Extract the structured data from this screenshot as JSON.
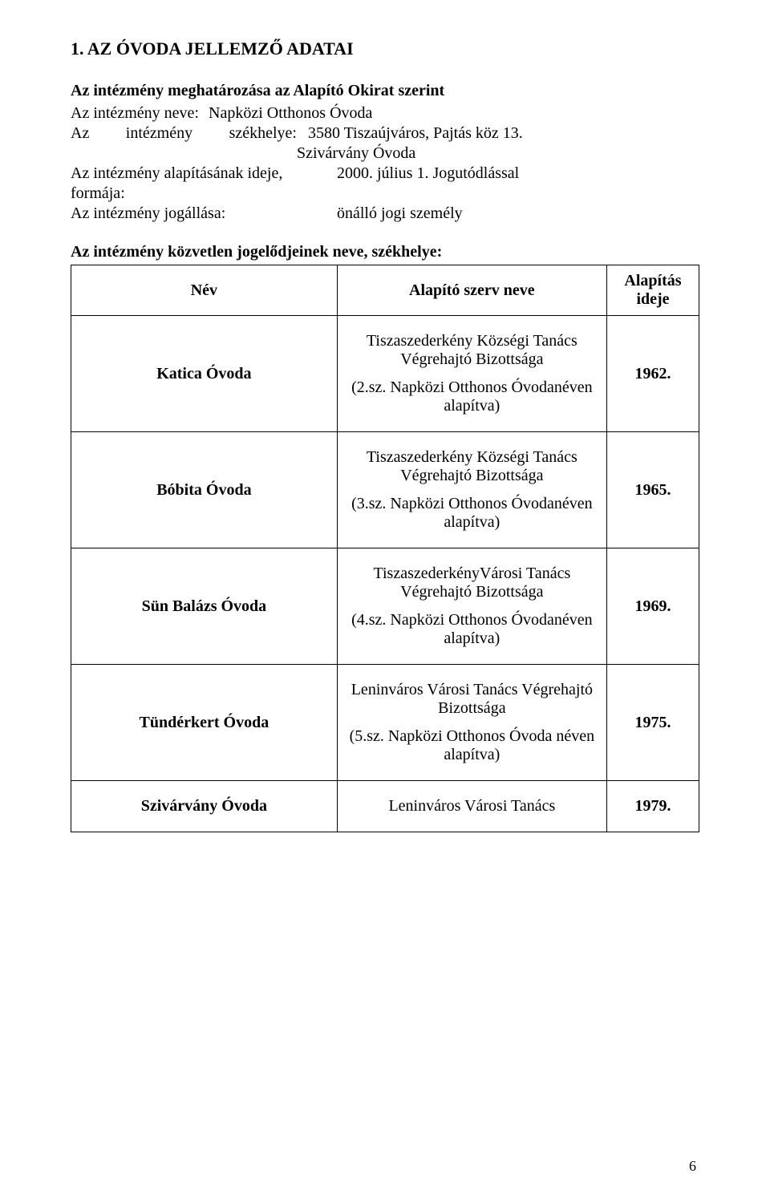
{
  "page_number": "6",
  "section_title": "1. AZ ÓVODA JELLEMZŐ ADATAI",
  "subheading": "Az intézmény meghatározása az Alapító Okirat szerint",
  "meta": {
    "name_label": "Az intézmény neve:",
    "name_value": "Napközi Otthonos Óvoda",
    "seat_label_left": "Az",
    "seat_label_center": "intézmény",
    "seat_label_right": "székhelye:",
    "seat_value_line1": "3580 Tiszaújváros, Pajtás köz 13.",
    "seat_value_line2": "Szivárvány Óvoda",
    "founding_label": "Az intézmény alapításának ideje, formája:",
    "founding_value": "2000. július 1. Jogutódlással",
    "status_label": "Az intézmény jogállása:",
    "status_value": "önálló jogi személy"
  },
  "table_title": "Az intézmény közvetlen jogelődjeinek neve, székhelye:",
  "headers": {
    "name": "Név",
    "founder": "Alapító szerv neve",
    "year": "Alapítás ideje"
  },
  "rows": [
    {
      "name": "Katica Óvoda",
      "founder_line1": "Tiszaszederkény Községi Tanács Végrehajtó Bizottsága",
      "founder_line2": "(2.sz. Napközi Otthonos Óvodanéven alapítva)",
      "year": "1962."
    },
    {
      "name": "Bóbita Óvoda",
      "founder_line1": "Tiszaszederkény Községi Tanács Végrehajtó Bizottsága",
      "founder_line2": "(3.sz. Napközi Otthonos Óvodanéven alapítva)",
      "year": "1965."
    },
    {
      "name": "Sün Balázs Óvoda",
      "founder_line1": "TiszaszederkényVárosi Tanács Végrehajtó Bizottsága",
      "founder_line2": "(4.sz. Napközi Otthonos Óvodanéven alapítva)",
      "year": "1969."
    },
    {
      "name": "Tündérkert Óvoda",
      "founder_line1": "Leninváros Városi Tanács Végrehajtó Bizottsága",
      "founder_line2": "(5.sz. Napközi Otthonos Óvoda néven alapítva)",
      "year": "1975."
    },
    {
      "name": "Szivárvány Óvoda",
      "founder_line1": "Leninváros Városi Tanács",
      "founder_line2": "",
      "year": "1979."
    }
  ]
}
